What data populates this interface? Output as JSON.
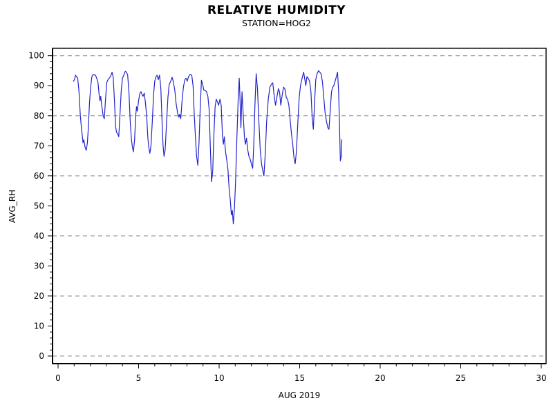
{
  "header": {
    "title": "RELATIVE HUMIDITY",
    "subtitle": "STATION=HOG2"
  },
  "chart_data": {
    "type": "line",
    "title": "RELATIVE HUMIDITY",
    "subtitle": "STATION=HOG2",
    "xlabel": "AUG 2019",
    "ylabel": "AVG_RH",
    "xlim": [
      0,
      30
    ],
    "ylim": [
      0,
      100
    ],
    "x_major_ticks": [
      0,
      5,
      10,
      15,
      20,
      25,
      30
    ],
    "x_minor_step": 1,
    "y_major_ticks": [
      0,
      10,
      20,
      30,
      40,
      50,
      60,
      70,
      80,
      90,
      100
    ],
    "y_minor_step": 2,
    "gridlines_at": [
      0,
      20,
      40,
      60,
      80,
      100
    ],
    "grid_style": "dashed",
    "legend": "none",
    "colors": {
      "line": "#2222cc",
      "grid": "#888888",
      "axis": "#000000",
      "text": "#000000",
      "background": "#ffffff"
    },
    "series": [
      {
        "name": "AVG_RH",
        "points": [
          [
            0.95,
            91.5
          ],
          [
            1.02,
            92
          ],
          [
            1.08,
            93.5
          ],
          [
            1.15,
            93
          ],
          [
            1.22,
            92.5
          ],
          [
            1.3,
            88
          ],
          [
            1.38,
            80
          ],
          [
            1.45,
            76
          ],
          [
            1.5,
            73.5
          ],
          [
            1.55,
            71
          ],
          [
            1.6,
            72
          ],
          [
            1.68,
            69.5
          ],
          [
            1.75,
            68.5
          ],
          [
            1.82,
            71
          ],
          [
            1.88,
            76
          ],
          [
            1.95,
            84
          ],
          [
            2.02,
            89.5
          ],
          [
            2.1,
            93
          ],
          [
            2.18,
            93.8
          ],
          [
            2.25,
            93.6
          ],
          [
            2.32,
            93.5
          ],
          [
            2.4,
            92.5
          ],
          [
            2.48,
            91
          ],
          [
            2.55,
            87
          ],
          [
            2.6,
            85
          ],
          [
            2.65,
            86.5
          ],
          [
            2.72,
            83
          ],
          [
            2.8,
            80
          ],
          [
            2.87,
            79
          ],
          [
            2.95,
            85.5
          ],
          [
            3.02,
            91
          ],
          [
            3.1,
            92
          ],
          [
            3.18,
            92.5
          ],
          [
            3.27,
            93.2
          ],
          [
            3.35,
            94.5
          ],
          [
            3.42,
            93
          ],
          [
            3.5,
            85
          ],
          [
            3.57,
            76.5
          ],
          [
            3.63,
            74.5
          ],
          [
            3.7,
            74
          ],
          [
            3.77,
            73
          ],
          [
            3.85,
            81
          ],
          [
            3.92,
            88
          ],
          [
            4.0,
            92.5
          ],
          [
            4.08,
            93.5
          ],
          [
            4.17,
            94.8
          ],
          [
            4.25,
            94.5
          ],
          [
            4.32,
            93.5
          ],
          [
            4.4,
            88
          ],
          [
            4.48,
            78
          ],
          [
            4.55,
            72.5
          ],
          [
            4.62,
            69.5
          ],
          [
            4.68,
            68
          ],
          [
            4.75,
            72
          ],
          [
            4.82,
            80
          ],
          [
            4.87,
            83
          ],
          [
            4.92,
            81.5
          ],
          [
            5.0,
            85
          ],
          [
            5.08,
            87.5
          ],
          [
            5.15,
            88
          ],
          [
            5.22,
            87
          ],
          [
            5.28,
            86.5
          ],
          [
            5.35,
            87.5
          ],
          [
            5.42,
            84.5
          ],
          [
            5.5,
            80
          ],
          [
            5.57,
            73
          ],
          [
            5.63,
            69.5
          ],
          [
            5.7,
            67.5
          ],
          [
            5.77,
            70
          ],
          [
            5.85,
            78
          ],
          [
            5.93,
            87
          ],
          [
            6.0,
            91.5
          ],
          [
            6.08,
            93
          ],
          [
            6.15,
            93.5
          ],
          [
            6.22,
            92
          ],
          [
            6.3,
            93.5
          ],
          [
            6.38,
            89
          ],
          [
            6.45,
            79
          ],
          [
            6.52,
            70
          ],
          [
            6.58,
            66.5
          ],
          [
            6.65,
            68.5
          ],
          [
            6.73,
            77
          ],
          [
            6.82,
            86
          ],
          [
            6.9,
            90.5
          ],
          [
            7.0,
            91.5
          ],
          [
            7.08,
            92.8
          ],
          [
            7.15,
            91.5
          ],
          [
            7.25,
            88.5
          ],
          [
            7.33,
            84
          ],
          [
            7.42,
            81
          ],
          [
            7.5,
            79.5
          ],
          [
            7.55,
            80.5
          ],
          [
            7.62,
            79
          ],
          [
            7.7,
            85
          ],
          [
            7.78,
            89.5
          ],
          [
            7.87,
            92
          ],
          [
            7.95,
            92.5
          ],
          [
            8.02,
            91.5
          ],
          [
            8.1,
            93
          ],
          [
            8.2,
            93.8
          ],
          [
            8.3,
            93.5
          ],
          [
            8.38,
            90
          ],
          [
            8.45,
            81
          ],
          [
            8.53,
            73
          ],
          [
            8.6,
            66.5
          ],
          [
            8.68,
            63.5
          ],
          [
            8.75,
            71
          ],
          [
            8.83,
            83
          ],
          [
            8.9,
            91.8
          ],
          [
            8.98,
            90.5
          ],
          [
            9.05,
            88.5
          ],
          [
            9.13,
            88.5
          ],
          [
            9.22,
            88
          ],
          [
            9.3,
            86.5
          ],
          [
            9.38,
            82
          ],
          [
            9.45,
            70
          ],
          [
            9.53,
            58
          ],
          [
            9.6,
            61.5
          ],
          [
            9.68,
            74
          ],
          [
            9.75,
            83
          ],
          [
            9.82,
            85.5
          ],
          [
            9.9,
            84.5
          ],
          [
            9.97,
            83.5
          ],
          [
            10.05,
            85.5
          ],
          [
            10.13,
            83.5
          ],
          [
            10.2,
            74
          ],
          [
            10.26,
            70.5
          ],
          [
            10.32,
            73
          ],
          [
            10.4,
            68
          ],
          [
            10.48,
            65
          ],
          [
            10.55,
            62
          ],
          [
            10.62,
            56
          ],
          [
            10.7,
            51.5
          ],
          [
            10.76,
            47
          ],
          [
            10.82,
            48.5
          ],
          [
            10.88,
            44
          ],
          [
            10.95,
            49
          ],
          [
            11.02,
            58
          ],
          [
            11.1,
            72
          ],
          [
            11.18,
            85
          ],
          [
            11.25,
            92.5
          ],
          [
            11.3,
            85
          ],
          [
            11.35,
            76
          ],
          [
            11.42,
            88
          ],
          [
            11.5,
            80
          ],
          [
            11.57,
            73
          ],
          [
            11.63,
            70.5
          ],
          [
            11.7,
            72.5
          ],
          [
            11.78,
            68.5
          ],
          [
            11.85,
            66.5
          ],
          [
            11.93,
            65.5
          ],
          [
            12.0,
            64
          ],
          [
            12.08,
            62.5
          ],
          [
            12.15,
            70
          ],
          [
            12.22,
            83
          ],
          [
            12.3,
            94
          ],
          [
            12.38,
            89
          ],
          [
            12.46,
            79
          ],
          [
            12.55,
            69
          ],
          [
            12.63,
            64
          ],
          [
            12.72,
            61.5
          ],
          [
            12.78,
            60
          ],
          [
            12.87,
            68
          ],
          [
            12.95,
            78
          ],
          [
            13.05,
            85.5
          ],
          [
            13.15,
            89.5
          ],
          [
            13.25,
            90.5
          ],
          [
            13.33,
            91
          ],
          [
            13.42,
            86.5
          ],
          [
            13.5,
            83.5
          ],
          [
            13.58,
            86
          ],
          [
            13.68,
            89
          ],
          [
            13.75,
            88
          ],
          [
            13.83,
            83.5
          ],
          [
            13.92,
            87
          ],
          [
            14.0,
            89.5
          ],
          [
            14.08,
            89
          ],
          [
            14.17,
            86
          ],
          [
            14.25,
            85.5
          ],
          [
            14.33,
            83.5
          ],
          [
            14.42,
            78
          ],
          [
            14.5,
            73.5
          ],
          [
            14.58,
            70
          ],
          [
            14.65,
            66
          ],
          [
            14.72,
            64
          ],
          [
            14.8,
            68
          ],
          [
            14.88,
            77
          ],
          [
            14.97,
            86
          ],
          [
            15.05,
            90
          ],
          [
            15.15,
            92.5
          ],
          [
            15.25,
            94.5
          ],
          [
            15.32,
            92
          ],
          [
            15.38,
            90
          ],
          [
            15.45,
            93
          ],
          [
            15.53,
            92.5
          ],
          [
            15.62,
            91.5
          ],
          [
            15.7,
            88
          ],
          [
            15.78,
            79
          ],
          [
            15.85,
            75.5
          ],
          [
            15.93,
            85
          ],
          [
            16.0,
            92
          ],
          [
            16.08,
            94
          ],
          [
            16.17,
            95
          ],
          [
            16.25,
            94.5
          ],
          [
            16.33,
            94
          ],
          [
            16.42,
            91
          ],
          [
            16.5,
            86
          ],
          [
            16.58,
            81
          ],
          [
            16.67,
            78
          ],
          [
            16.75,
            76
          ],
          [
            16.82,
            75.5
          ],
          [
            16.9,
            82
          ],
          [
            16.98,
            88
          ],
          [
            17.05,
            89.5
          ],
          [
            17.12,
            90
          ],
          [
            17.2,
            91.5
          ],
          [
            17.28,
            93
          ],
          [
            17.35,
            94.5
          ],
          [
            17.42,
            88
          ],
          [
            17.48,
            75
          ],
          [
            17.53,
            65
          ],
          [
            17.58,
            66.5
          ],
          [
            17.62,
            72
          ]
        ]
      }
    ]
  }
}
